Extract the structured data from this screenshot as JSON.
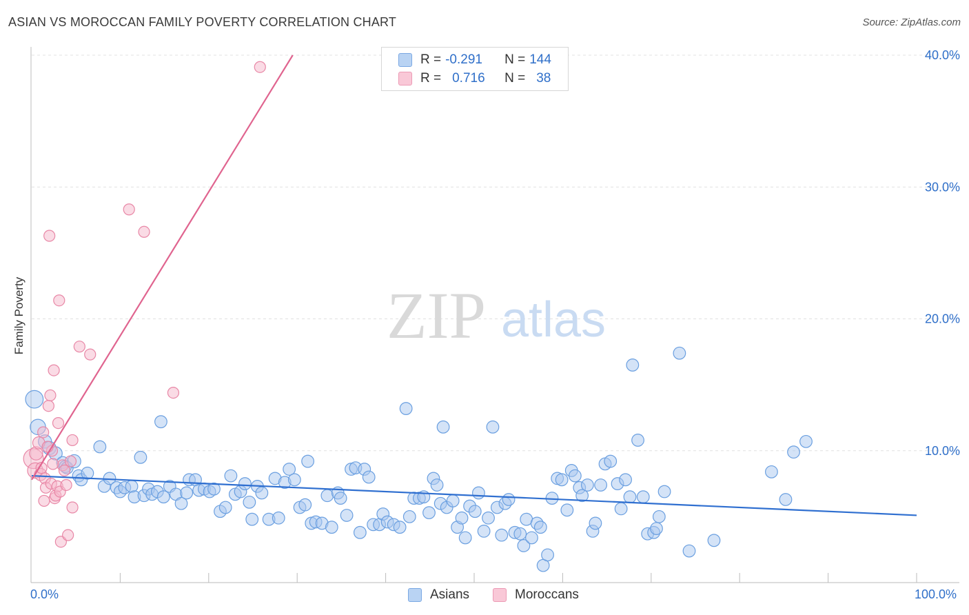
{
  "title": "ASIAN VS MOROCCAN FAMILY POVERTY CORRELATION CHART",
  "source": "Source: ZipAtlas.com",
  "watermark": {
    "zip": "ZIP",
    "atlas": "atlas"
  },
  "colors": {
    "asian_fill": "#a9c8f0",
    "asian_stroke": "#6a9fe0",
    "asian_line": "#2f6fd0",
    "moroccan_fill": "#f6b8cb",
    "moroccan_stroke": "#e887a6",
    "moroccan_line": "#e0648f",
    "axis_text": "#2f6fc9",
    "grid": "#e0e0e0"
  },
  "legend": {
    "asian": {
      "r_label": "R = ",
      "r_value": "-0.291",
      "n_label": "N = ",
      "n_value": "144"
    },
    "moroccan": {
      "r_label": "R = ",
      "r_value": "0.716",
      "n_label": "N = ",
      "n_value": "38"
    }
  },
  "bottom_legend": {
    "asians": "Asians",
    "moroccans": "Moroccans"
  },
  "chart_data": {
    "type": "scatter",
    "title": "ASIAN VS MOROCCAN FAMILY POVERTY CORRELATION CHART",
    "xlabel": "",
    "ylabel": "Family Poverty",
    "xlim": [
      0,
      100
    ],
    "ylim": [
      0,
      40
    ],
    "x_tick_labels": [
      "0.0%",
      "100.0%"
    ],
    "y_ticks": [
      10,
      20,
      30,
      40
    ],
    "y_tick_labels": [
      "10.0%",
      "20.0%",
      "30.0%",
      "40.0%"
    ],
    "grid": true,
    "legend_position": "top-center",
    "series": [
      {
        "name": "Asians",
        "r": -0.291,
        "n": 144,
        "trend": {
          "x": [
            0,
            100
          ],
          "y": [
            8.1,
            5.1
          ]
        },
        "points": [
          [
            0.3,
            13.9,
            16
          ],
          [
            0.7,
            11.8,
            14
          ],
          [
            1.5,
            10.7,
            12
          ],
          [
            2,
            10.2,
            12
          ],
          [
            2.7,
            9.8,
            12
          ],
          [
            3.5,
            9.1,
            11
          ],
          [
            3.8,
            8.8,
            11
          ],
          [
            4,
            8.7,
            11
          ],
          [
            4.8,
            9.2,
            12
          ],
          [
            5.3,
            8.1,
            11
          ],
          [
            5.6,
            7.8,
            11
          ],
          [
            6.3,
            8.3,
            11
          ],
          [
            7.7,
            10.3,
            11
          ],
          [
            8.2,
            7.3,
            11
          ],
          [
            8.8,
            7.9,
            11
          ],
          [
            9.6,
            7.2,
            11
          ],
          [
            10,
            6.9,
            11
          ],
          [
            10.5,
            7.2,
            11
          ],
          [
            11.3,
            7.3,
            11
          ],
          [
            11.6,
            6.5,
            11
          ],
          [
            12.3,
            9.5,
            11
          ],
          [
            12.7,
            6.6,
            11
          ],
          [
            13.2,
            7.1,
            11
          ],
          [
            13.6,
            6.7,
            11
          ],
          [
            14.2,
            6.9,
            11
          ],
          [
            14.6,
            12.2,
            11
          ],
          [
            14.9,
            6.5,
            11
          ],
          [
            15.6,
            7.3,
            11
          ],
          [
            16.3,
            6.7,
            11
          ],
          [
            16.9,
            6.0,
            11
          ],
          [
            17.5,
            6.8,
            11
          ],
          [
            17.8,
            7.8,
            11
          ],
          [
            18.5,
            7.8,
            11
          ],
          [
            18.9,
            7.0,
            11
          ],
          [
            19.5,
            7.1,
            11
          ],
          [
            20.1,
            6.9,
            11
          ],
          [
            20.6,
            7.1,
            11
          ],
          [
            21.3,
            5.4,
            11
          ],
          [
            21.9,
            5.7,
            11
          ],
          [
            22.5,
            8.1,
            11
          ],
          [
            23,
            6.7,
            11
          ],
          [
            23.6,
            6.9,
            11
          ],
          [
            24.1,
            7.5,
            11
          ],
          [
            24.6,
            6.1,
            11
          ],
          [
            24.9,
            4.8,
            11
          ],
          [
            25.5,
            7.3,
            11
          ],
          [
            26,
            6.8,
            11
          ],
          [
            26.8,
            4.8,
            11
          ],
          [
            27.5,
            7.9,
            11
          ],
          [
            27.9,
            4.9,
            11
          ],
          [
            28.6,
            7.6,
            11
          ],
          [
            29.1,
            8.6,
            11
          ],
          [
            29.7,
            7.8,
            11
          ],
          [
            30.3,
            5.7,
            11
          ],
          [
            30.9,
            5.9,
            11
          ],
          [
            31.2,
            9.2,
            11
          ],
          [
            31.6,
            4.5,
            11
          ],
          [
            32.1,
            4.6,
            11
          ],
          [
            32.8,
            4.5,
            11
          ],
          [
            33.4,
            6.6,
            11
          ],
          [
            33.9,
            4.2,
            11
          ],
          [
            34.6,
            6.8,
            11
          ],
          [
            34.9,
            6.4,
            11
          ],
          [
            35.6,
            5.1,
            11
          ],
          [
            36.1,
            8.6,
            11
          ],
          [
            36.6,
            8.7,
            11
          ],
          [
            37.1,
            3.8,
            11
          ],
          [
            37.6,
            8.6,
            11
          ],
          [
            38.1,
            8.0,
            11
          ],
          [
            38.6,
            4.4,
            11
          ],
          [
            39.3,
            4.4,
            11
          ],
          [
            39.7,
            5.2,
            11
          ],
          [
            40.2,
            4.6,
            11
          ],
          [
            40.9,
            4.4,
            11
          ],
          [
            41.6,
            4.2,
            11
          ],
          [
            42.3,
            13.2,
            11
          ],
          [
            42.7,
            5.0,
            11
          ],
          [
            43.2,
            6.4,
            11
          ],
          [
            43.8,
            6.4,
            11
          ],
          [
            44.3,
            6.5,
            11
          ],
          [
            44.9,
            5.3,
            11
          ],
          [
            45.4,
            7.9,
            11
          ],
          [
            45.8,
            7.4,
            11
          ],
          [
            46.2,
            6.0,
            11
          ],
          [
            46.5,
            11.8,
            11
          ],
          [
            46.9,
            5.7,
            11
          ],
          [
            47.6,
            6.2,
            11
          ],
          [
            48.1,
            4.2,
            11
          ],
          [
            48.6,
            4.9,
            11
          ],
          [
            49,
            3.4,
            11
          ],
          [
            49.5,
            5.8,
            11
          ],
          [
            50.1,
            5.4,
            11
          ],
          [
            50.5,
            6.8,
            11
          ],
          [
            51.1,
            3.9,
            11
          ],
          [
            51.6,
            4.9,
            11
          ],
          [
            52.1,
            11.8,
            11
          ],
          [
            52.6,
            5.7,
            11
          ],
          [
            53.1,
            3.6,
            11
          ],
          [
            53.5,
            6.0,
            11
          ],
          [
            53.9,
            6.3,
            11
          ],
          [
            54.6,
            3.8,
            11
          ],
          [
            55.2,
            3.7,
            11
          ],
          [
            55.6,
            2.8,
            11
          ],
          [
            55.9,
            4.8,
            11
          ],
          [
            56.5,
            3.4,
            11
          ],
          [
            57.1,
            4.5,
            11
          ],
          [
            57.5,
            4.2,
            11
          ],
          [
            57.8,
            1.3,
            11
          ],
          [
            58.3,
            2.1,
            11
          ],
          [
            58.8,
            6.4,
            11
          ],
          [
            59.4,
            7.9,
            11
          ],
          [
            59.9,
            7.8,
            11
          ],
          [
            60.5,
            5.5,
            11
          ],
          [
            61,
            8.5,
            11
          ],
          [
            61.4,
            8.1,
            11
          ],
          [
            61.9,
            7.2,
            11
          ],
          [
            62.2,
            6.6,
            11
          ],
          [
            62.8,
            7.4,
            11
          ],
          [
            63.4,
            3.9,
            11
          ],
          [
            63.7,
            4.5,
            11
          ],
          [
            64.3,
            7.4,
            11
          ],
          [
            64.8,
            9.0,
            11
          ],
          [
            65.4,
            9.2,
            11
          ],
          [
            66.2,
            7.5,
            11
          ],
          [
            66.6,
            5.6,
            11
          ],
          [
            67.1,
            7.8,
            11
          ],
          [
            67.6,
            6.5,
            11
          ],
          [
            67.9,
            16.5,
            11
          ],
          [
            68.5,
            10.8,
            11
          ],
          [
            69.1,
            6.5,
            11
          ],
          [
            69.6,
            3.7,
            11
          ],
          [
            70.3,
            3.8,
            11
          ],
          [
            70.6,
            4.1,
            11
          ],
          [
            70.9,
            5.0,
            11
          ],
          [
            71.5,
            6.9,
            11
          ],
          [
            73.2,
            17.4,
            11
          ],
          [
            74.3,
            2.4,
            11
          ],
          [
            77.1,
            3.2,
            11
          ],
          [
            85.2,
            6.3,
            11
          ],
          [
            87.5,
            10.7,
            11
          ],
          [
            83.6,
            8.4,
            11
          ],
          [
            86.1,
            9.9,
            11
          ]
        ]
      },
      {
        "name": "Moroccans",
        "r": 0.716,
        "n": 38,
        "trend": {
          "x": [
            0,
            29.5
          ],
          "y": [
            7.8,
            40
          ]
        },
        "points": [
          [
            0.2,
            9.4,
            18
          ],
          [
            0.4,
            8.5,
            14
          ],
          [
            0.5,
            9.8,
            12
          ],
          [
            0.8,
            10.6,
            11
          ],
          [
            1,
            8.2,
            11
          ],
          [
            1.3,
            11.4,
            10
          ],
          [
            1.5,
            7.9,
            10
          ],
          [
            1.4,
            6.2,
            10
          ],
          [
            1.6,
            7.2,
            10
          ],
          [
            1.9,
            13.4,
            10
          ],
          [
            2.1,
            14.2,
            10
          ],
          [
            2,
            26.3,
            10
          ],
          [
            2.2,
            7.5,
            10
          ],
          [
            2.3,
            10.0,
            10
          ],
          [
            2.5,
            16.1,
            10
          ],
          [
            2.6,
            6.4,
            10
          ],
          [
            2.7,
            6.6,
            10
          ],
          [
            2.9,
            7.3,
            10
          ],
          [
            3,
            12.1,
            10
          ],
          [
            3.1,
            21.4,
            10
          ],
          [
            3.2,
            6.9,
            10
          ],
          [
            3.3,
            3.1,
            10
          ],
          [
            3.5,
            8.9,
            10
          ],
          [
            3.7,
            8.5,
            10
          ],
          [
            3.9,
            7.4,
            10
          ],
          [
            4.1,
            3.6,
            10
          ],
          [
            4.4,
            9.2,
            10
          ],
          [
            4.6,
            10.8,
            10
          ],
          [
            4.6,
            5.7,
            10
          ],
          [
            5.4,
            17.9,
            10
          ],
          [
            6.6,
            17.3,
            10
          ],
          [
            11,
            28.3,
            10
          ],
          [
            12.7,
            26.6,
            10
          ],
          [
            16,
            14.4,
            10
          ],
          [
            25.8,
            39.1,
            10
          ],
          [
            2.4,
            9.0,
            10
          ],
          [
            1.1,
            8.7,
            10
          ],
          [
            1.8,
            10.3,
            10
          ]
        ]
      }
    ]
  }
}
